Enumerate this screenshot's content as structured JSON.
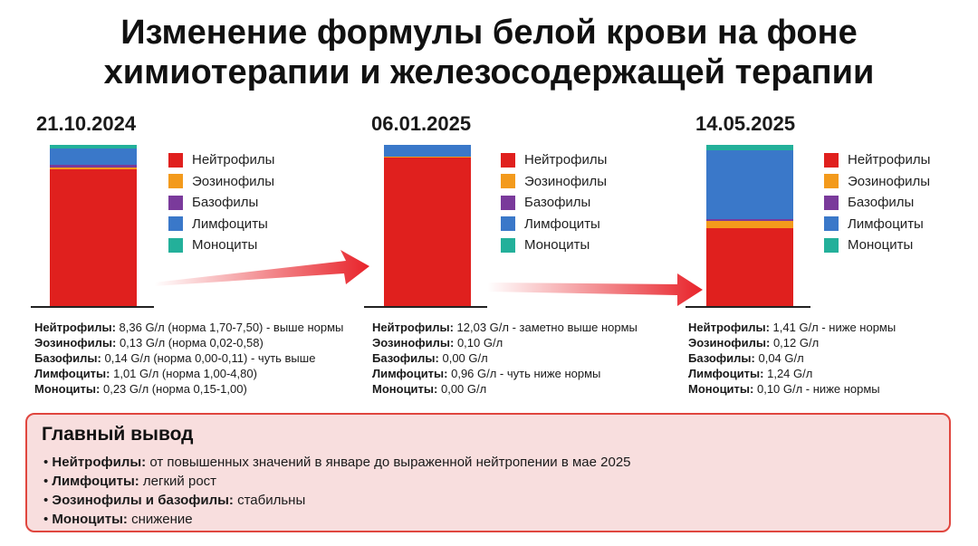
{
  "title": {
    "line1": "Изменение формулы белой крови на фоне",
    "line2": "химиотерапии и железосодержащей терапии"
  },
  "colors": {
    "neutrophils": "#e0201e",
    "eosinophils": "#f39a1c",
    "basophils": "#7a3a9b",
    "lymphocytes": "#3a78c9",
    "monocytes": "#23b09a",
    "arrow": "#e8232a",
    "conclusion_border": "#e0463f",
    "conclusion_bg": "#f8dede"
  },
  "legend": [
    {
      "key": "neutrophils",
      "label": "Нейтрофилы"
    },
    {
      "key": "eosinophils",
      "label": "Эозинофилы"
    },
    {
      "key": "basophils",
      "label": "Базофилы"
    },
    {
      "key": "lymphocytes",
      "label": "Лимфоциты"
    },
    {
      "key": "monocytes",
      "label": "Моноциты"
    }
  ],
  "chart_data": {
    "type": "bar",
    "stacked": true,
    "categories": [
      "21.10.2024",
      "06.01.2025",
      "14.05.2025"
    ],
    "series": [
      {
        "name": "Нейтрофилы",
        "values": [
          8.36,
          12.03,
          1.41
        ]
      },
      {
        "name": "Эозинофилы",
        "values": [
          0.13,
          0.1,
          0.12
        ]
      },
      {
        "name": "Базофилы",
        "values": [
          0.14,
          0.0,
          0.04
        ]
      },
      {
        "name": "Лимфоциты",
        "values": [
          1.01,
          0.96,
          1.24
        ]
      },
      {
        "name": "Моноциты",
        "values": [
          0.23,
          0.0,
          0.1
        ]
      }
    ],
    "legend": "right of each bar",
    "grid": false
  },
  "panels": [
    {
      "date": "21.10.2024",
      "stats": [
        {
          "name": "Нейтрофилы:",
          "text": " 8,36 G/л (норма 1,70-7,50) - выше нормы"
        },
        {
          "name": "Эозинофилы:",
          "text": " 0,13 G/л (норма 0,02-0,58)"
        },
        {
          "name": "Базофилы:",
          "text": " 0,14 G/л (норма 0,00-0,11) - чуть выше"
        },
        {
          "name": "Лимфоциты:",
          "text": " 1,01 G/л (норма 1,00-4,80)"
        },
        {
          "name": "Моноциты:",
          "text": " 0,23 G/л (норма 0,15-1,00)"
        }
      ]
    },
    {
      "date": "06.01.2025",
      "stats": [
        {
          "name": "Нейтрофилы:",
          "text": " 12,03 G/л - заметно выше нормы"
        },
        {
          "name": "Эозинофилы:",
          "text": " 0,10 G/л"
        },
        {
          "name": "Базофилы:",
          "text": " 0,00 G/л"
        },
        {
          "name": "Лимфоциты:",
          "text": " 0,96 G/л - чуть ниже нормы"
        },
        {
          "name": "Моноциты:",
          "text": " 0,00 G/л"
        }
      ]
    },
    {
      "date": "14.05.2025",
      "stats": [
        {
          "name": "Нейтрофилы:",
          "text": " 1,41 G/л - ниже нормы"
        },
        {
          "name": "Эозинофилы:",
          "text": " 0,12 G/л"
        },
        {
          "name": "Базофилы:",
          "text": " 0,04 G/л"
        },
        {
          "name": "Лимфоциты:",
          "text": " 1,24 G/л"
        },
        {
          "name": "Моноциты:",
          "text": " 0,10 G/л - ниже нормы"
        }
      ]
    }
  ],
  "conclusion": {
    "title": "Главный вывод",
    "items": [
      {
        "name": "Нейтрофилы:",
        "text": " от повышенных значений в январе до выраженной нейтропении в мае 2025"
      },
      {
        "name": "Лимфоциты:",
        "text": " легкий рост"
      },
      {
        "name": "Эозинофилы и базофилы:",
        "text": " стабильны"
      },
      {
        "name": "Моноциты:",
        "text": " снижение"
      }
    ]
  }
}
